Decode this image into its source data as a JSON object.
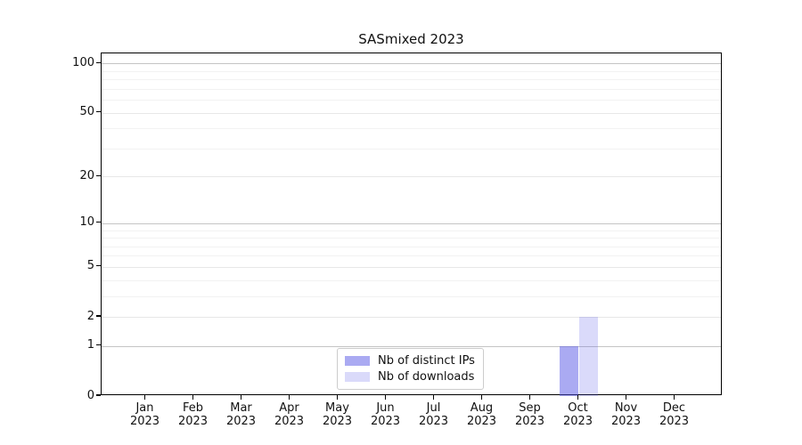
{
  "title": "SASmixed 2023",
  "chart_data": {
    "type": "bar",
    "title": "SASmixed 2023",
    "categories": [
      "Jan 2023",
      "Feb 2023",
      "Mar 2023",
      "Apr 2023",
      "May 2023",
      "Jun 2023",
      "Jul 2023",
      "Aug 2023",
      "Sep 2023",
      "Oct 2023",
      "Nov 2023",
      "Dec 2023"
    ],
    "series": [
      {
        "name": "Nb of distinct IPs",
        "color": "rgba(85,85,230,0.5)",
        "values": [
          0,
          0,
          0,
          0,
          0,
          0,
          0,
          0,
          0,
          1,
          0,
          0
        ]
      },
      {
        "name": "Nb of downloads",
        "color": "rgba(85,85,230,0.22)",
        "values": [
          0,
          0,
          0,
          0,
          0,
          0,
          0,
          0,
          0,
          2,
          0,
          0
        ]
      }
    ],
    "xlabel": "",
    "ylabel": "",
    "yscale": "log1p",
    "ylim": [
      0,
      115
    ],
    "yticks": [
      {
        "v": 0,
        "label": "0"
      },
      {
        "v": 1,
        "label": "1"
      },
      {
        "v": 2,
        "label": "2"
      },
      {
        "v": 5,
        "label": "5"
      },
      {
        "v": 10,
        "label": "10"
      },
      {
        "v": 20,
        "label": "20"
      },
      {
        "v": 50,
        "label": "50"
      },
      {
        "v": 100,
        "label": "100"
      }
    ],
    "yticks_minor": [
      3,
      4,
      6,
      7,
      8,
      9,
      30,
      40,
      60,
      70,
      80,
      90
    ],
    "grid": true,
    "legend_position": "lower center",
    "colors": {
      "axis": "#000000",
      "grid_power10": "#c4c4c4",
      "grid_labeled": "#e7e7e7",
      "grid_minor": "#f2f2f2",
      "background": "#ffffff"
    }
  }
}
